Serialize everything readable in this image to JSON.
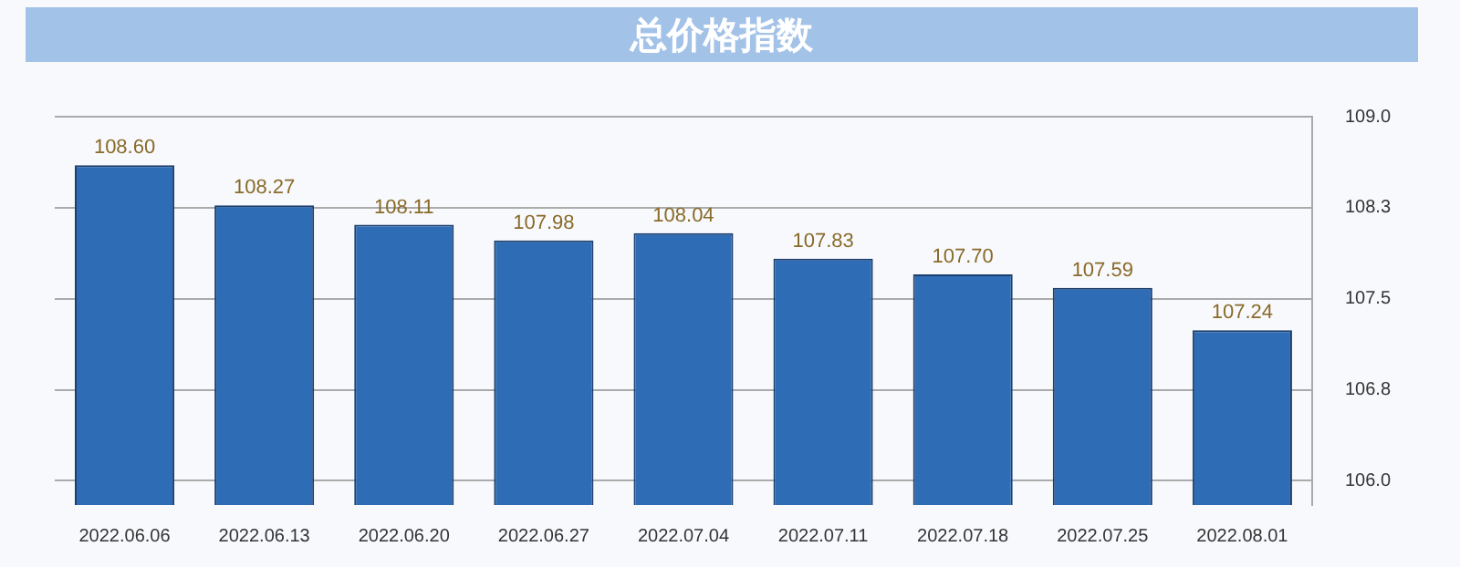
{
  "chart_data": {
    "type": "bar",
    "title": "总价格指数",
    "categories": [
      "2022.06.06",
      "2022.06.13",
      "2022.06.20",
      "2022.06.27",
      "2022.07.04",
      "2022.07.11",
      "2022.07.18",
      "2022.07.25",
      "2022.08.01"
    ],
    "values": [
      108.6,
      108.27,
      108.11,
      107.98,
      108.04,
      107.83,
      107.7,
      107.59,
      107.24
    ],
    "value_labels": [
      "108.60",
      "108.27",
      "108.11",
      "107.98",
      "108.04",
      "107.83",
      "107.70",
      "107.59",
      "107.24"
    ],
    "color": "#2e6cb5",
    "ylim": [
      105.8,
      109
    ],
    "yticks": [
      {
        "value": 106,
        "label": "106.0"
      },
      {
        "value": 106.75,
        "label": "106.8"
      },
      107.5,
      {
        "value": 108.25,
        "label": "108.3"
      },
      {
        "value": 109,
        "label": "109.0"
      }
    ],
    "grid": "y",
    "legend": false
  }
}
